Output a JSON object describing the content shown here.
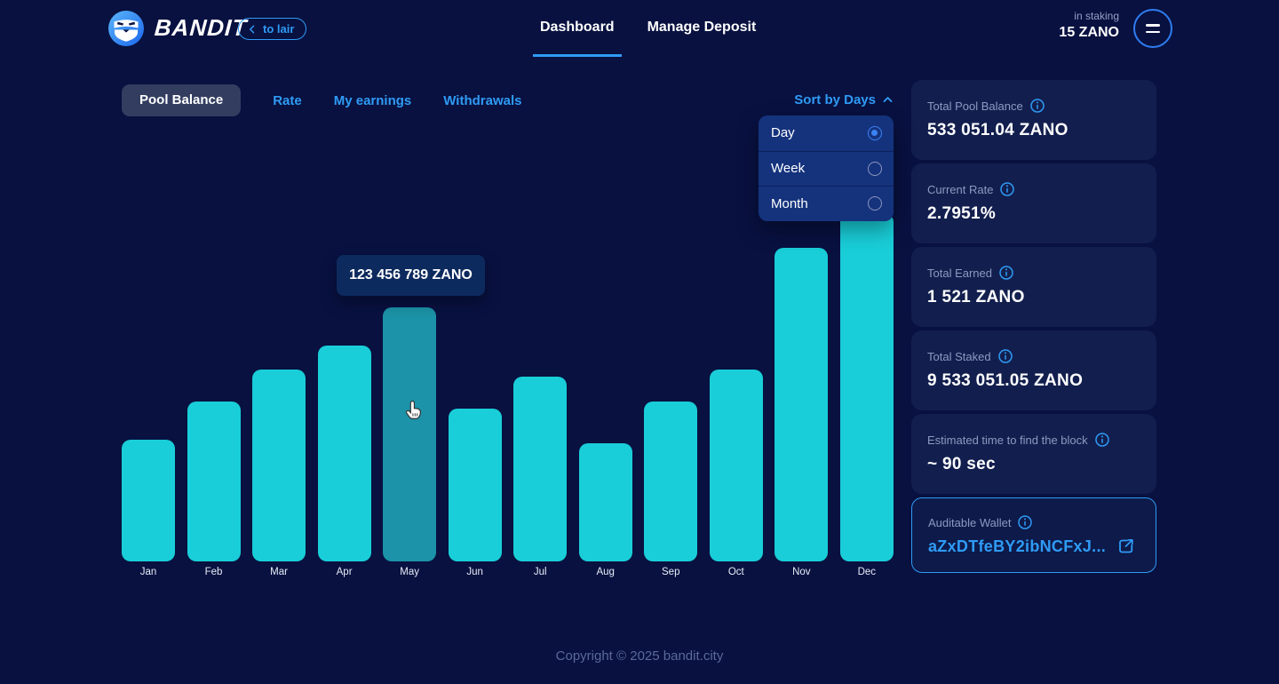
{
  "header": {
    "brand": "BANDIT",
    "to_lair_label": "to lair",
    "nav": [
      {
        "label": "Dashboard",
        "active": true
      },
      {
        "label": "Manage Deposit",
        "active": false
      }
    ],
    "staking_label": "in staking",
    "staking_value": "15 ZANO"
  },
  "tabs": [
    {
      "label": "Pool Balance",
      "active": true
    },
    {
      "label": "Rate",
      "active": false
    },
    {
      "label": "My earnings",
      "active": false
    },
    {
      "label": "Withdrawals",
      "active": false
    }
  ],
  "sort": {
    "label": "Sort by Days",
    "expanded": true,
    "options": [
      {
        "label": "Day",
        "selected": true
      },
      {
        "label": "Week",
        "selected": false
      },
      {
        "label": "Month",
        "selected": false
      }
    ]
  },
  "chart_data": {
    "type": "bar",
    "title": "",
    "xlabel": "",
    "ylabel": "",
    "grid": false,
    "legend": false,
    "categories": [
      "Jan",
      "Feb",
      "Mar",
      "Apr",
      "May",
      "Jun",
      "Jul",
      "Aug",
      "Sep",
      "Oct",
      "Nov",
      "Dec"
    ],
    "values_relative_pct": [
      35,
      46,
      55,
      62,
      73,
      44,
      53,
      34,
      46,
      55,
      90,
      100
    ],
    "hovered_category": "May",
    "tooltip_value": "123 456 789 ZANO",
    "bar_color": "#19CED8",
    "bar_hover_color": "#1C93A8"
  },
  "stats": [
    {
      "label": "Total Pool Balance",
      "value": "533 051.04 ZANO"
    },
    {
      "label": "Current Rate",
      "value": "2.7951%"
    },
    {
      "label": "Total Earned",
      "value": "1 521 ZANO"
    },
    {
      "label": "Total Staked",
      "value": "9 533 051.05 ZANO"
    },
    {
      "label": "Estimated time to find the block",
      "value": "~ 90 sec"
    },
    {
      "label": "Auditable Wallet",
      "value": "aZxDTfeBY2ibNCFxJ..."
    }
  ],
  "footer": {
    "copyright": "Copyright © 2025 bandit.city"
  },
  "colors": {
    "background": "#081140",
    "card_background": "#121F4E",
    "dropdown_background": "#15337D",
    "tooltip_background": "#0D2A5E",
    "accent_blue": "#2F9BF5",
    "bar_cyan": "#19CED8",
    "bar_hover_teal": "#1C93A8"
  }
}
